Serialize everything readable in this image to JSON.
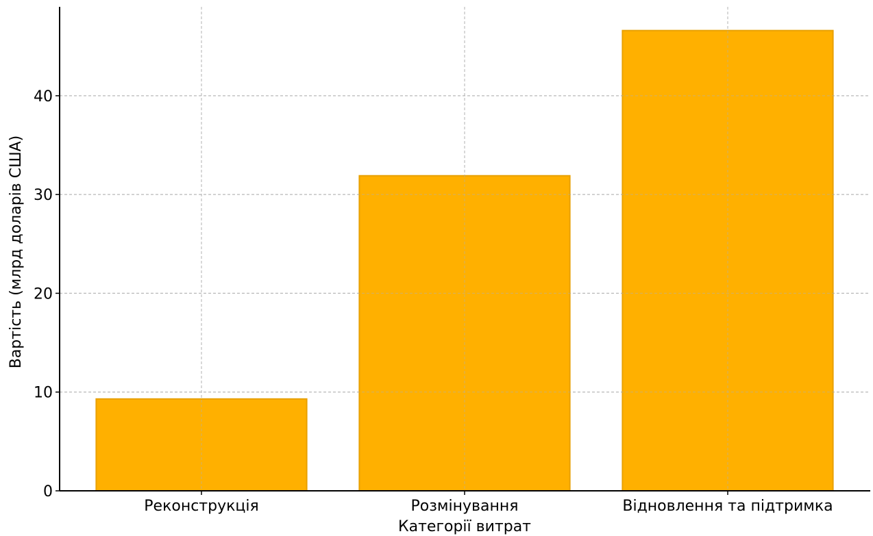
{
  "chart_data": {
    "type": "bar",
    "title": "",
    "xlabel": "Категорії витрат",
    "ylabel": "Вартість (млрд доларів США)",
    "categories": [
      "Реконструкція",
      "Розмінування",
      "Відновлення та підтримка"
    ],
    "values": [
      9.3,
      31.9,
      46.6
    ],
    "ylim": [
      0,
      49
    ],
    "yticks": [
      0,
      10,
      20,
      30,
      40
    ],
    "grid": true,
    "colors": {
      "bar_fill": "#FFB000",
      "bar_edge": "#E8A000",
      "grid": "#B0B0B0",
      "axis": "#000000"
    }
  }
}
